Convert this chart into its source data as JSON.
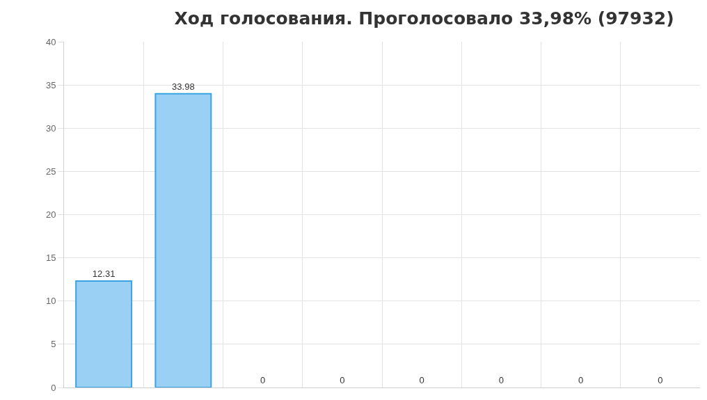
{
  "chart_data": {
    "type": "bar",
    "title": "Ход голосования. Проголосовало 33,98% (97932)",
    "categories": [
      null,
      null,
      null,
      null,
      null,
      null,
      null,
      null
    ],
    "values": [
      12.31,
      33.98,
      0,
      0,
      0,
      0,
      0,
      0
    ],
    "color": "#9bd0f5",
    "ylim": [
      0,
      40
    ],
    "yticks": [
      0,
      5,
      10,
      15,
      20,
      25,
      30,
      35,
      40
    ],
    "grid": true,
    "data_labels": true,
    "tick_labels": "y"
  }
}
